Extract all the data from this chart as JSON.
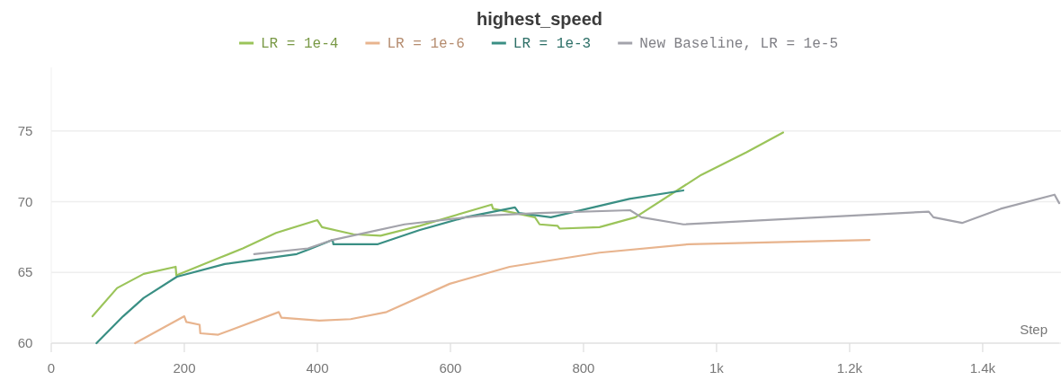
{
  "chart_data": {
    "type": "line",
    "title": "highest_speed",
    "xlabel": "Step",
    "xlim": [
      0,
      1515
    ],
    "ylim": [
      60,
      79.5
    ],
    "xticks": [
      0,
      200,
      400,
      600,
      800,
      {
        "value": 1000,
        "label": "1k"
      },
      {
        "value": 1200,
        "label": "1.2k"
      },
      {
        "value": 1400,
        "label": "1.4k"
      }
    ],
    "yticks": [
      60,
      65,
      70,
      75
    ],
    "grid": "y",
    "legend": "top",
    "series": [
      {
        "name": "LR = 1e-4",
        "color": "#9bc45a",
        "x": [
          62,
          99,
          139,
          187,
          188,
          251,
          288,
          338,
          400,
          407,
          454,
          495,
          554,
          662,
          664,
          697,
          727,
          734,
          761,
          764,
          824,
          878,
          977,
          1045,
          1100
        ],
        "values": [
          61.9,
          63.9,
          64.9,
          65.4,
          64.8,
          66.0,
          66.7,
          67.8,
          68.7,
          68.2,
          67.7,
          67.6,
          68.3,
          69.8,
          69.5,
          69.2,
          68.9,
          68.4,
          68.3,
          68.1,
          68.2,
          68.9,
          71.9,
          73.5,
          74.9
        ]
      },
      {
        "name": "LR = 1e-6",
        "color": "#e8b48e",
        "x": [
          126,
          200,
          203,
          223,
          224,
          251,
          342,
          346,
          403,
          450,
          504,
          599,
          689,
          824,
          959,
          1230
        ],
        "values": [
          60,
          61.9,
          61.5,
          61.3,
          60.7,
          60.6,
          62.2,
          61.8,
          61.6,
          61.7,
          62.2,
          64.2,
          65.4,
          66.4,
          67.0,
          67.3
        ]
      },
      {
        "name": "LR = 1e-3",
        "color": "#3a8f84",
        "x": [
          68,
          108,
          139,
          189,
          261,
          369,
          386,
          423,
          424,
          491,
          554,
          622,
          697,
          703,
          751,
          869,
          950
        ],
        "values": [
          60,
          61.9,
          63.2,
          64.7,
          65.6,
          66.3,
          66.6,
          67.3,
          67.0,
          67.0,
          68.0,
          68.9,
          69.6,
          69.2,
          68.9,
          70.2,
          70.8
        ]
      },
      {
        "name": "New Baseline, LR = 1e-5",
        "color": "#a3a3ab",
        "x": [
          305,
          386,
          423,
          531,
          643,
          734,
          870,
          887,
          950,
          1319,
          1326,
          1369,
          1427,
          1508,
          1515
        ],
        "values": [
          66.3,
          66.7,
          67.3,
          68.4,
          69.0,
          69.2,
          69.4,
          68.9,
          68.4,
          69.3,
          68.9,
          68.5,
          69.5,
          70.5,
          69.9
        ]
      }
    ]
  }
}
